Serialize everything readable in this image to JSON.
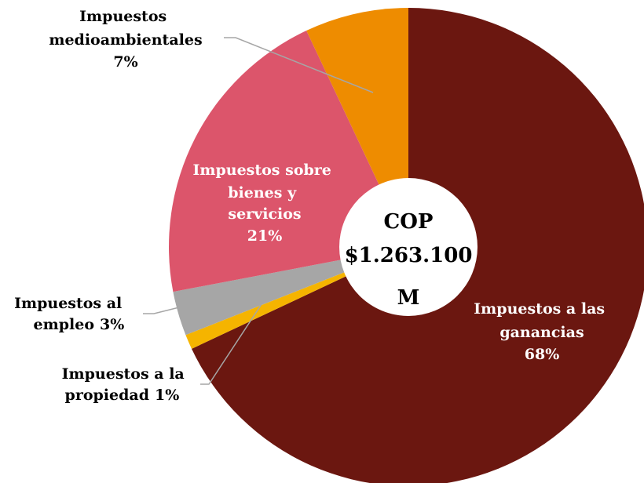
{
  "chart_data": {
    "type": "pie",
    "categories": [
      "Impuestos a las ganancias",
      "Impuestos a la propiedad",
      "Impuestos al empleo",
      "Impuestos sobre bienes y servicios",
      "Impuestos medioambientales"
    ],
    "values": [
      68,
      1,
      3,
      21,
      7
    ],
    "value_labels": [
      "68%",
      "1%",
      "3%",
      "21%",
      "7%"
    ],
    "colors": [
      "#6b1710",
      "#f5b400",
      "#a6a6a6",
      "#dc556b",
      "#ee8c00"
    ],
    "center_label": [
      "COP",
      "$1.263.100",
      "M"
    ]
  }
}
